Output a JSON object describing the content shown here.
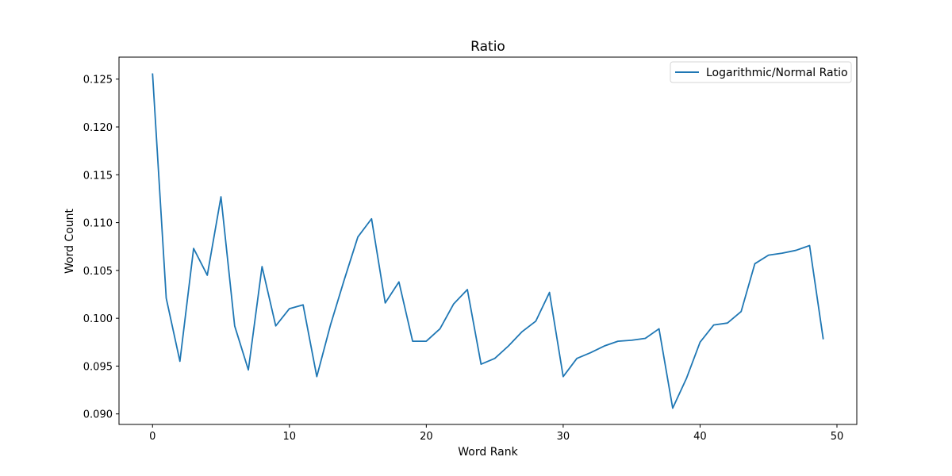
{
  "chart_data": {
    "type": "line",
    "title": "Ratio",
    "xlabel": "Word Rank",
    "ylabel": "Word Count",
    "xlim": [
      -2.45,
      51.45
    ],
    "ylim": [
      0.0889,
      0.1273
    ],
    "xticks": [
      0,
      10,
      20,
      30,
      40,
      50
    ],
    "xtick_labels": [
      "0",
      "10",
      "20",
      "30",
      "40",
      "50"
    ],
    "yticks": [
      0.09,
      0.095,
      0.1,
      0.105,
      0.11,
      0.115,
      0.12,
      0.125
    ],
    "ytick_labels": [
      "0.090",
      "0.095",
      "0.100",
      "0.105",
      "0.110",
      "0.115",
      "0.120",
      "0.125"
    ],
    "grid": false,
    "legend_position": "top-right",
    "series": [
      {
        "name": "Logarithmic/Normal Ratio",
        "color": "#1f77b4",
        "x": [
          0,
          1,
          2,
          3,
          4,
          5,
          6,
          7,
          8,
          9,
          10,
          11,
          12,
          13,
          14,
          15,
          16,
          17,
          18,
          19,
          20,
          21,
          22,
          23,
          24,
          25,
          26,
          27,
          28,
          29,
          30,
          31,
          32,
          33,
          34,
          35,
          36,
          37,
          38,
          39,
          40,
          41,
          42,
          43,
          44,
          45,
          46,
          47,
          48,
          49
        ],
        "values": [
          0.1256,
          0.1021,
          0.0955,
          0.1073,
          0.1045,
          0.1127,
          0.0992,
          0.0946,
          0.1054,
          0.0992,
          0.101,
          0.1014,
          0.0939,
          0.0993,
          0.104,
          0.1085,
          0.1104,
          0.1016,
          0.1038,
          0.0976,
          0.0976,
          0.0989,
          0.1015,
          0.103,
          0.0952,
          0.0958,
          0.0971,
          0.0986,
          0.0997,
          0.1027,
          0.0939,
          0.0958,
          0.0964,
          0.0971,
          0.0976,
          0.0977,
          0.0979,
          0.0989,
          0.0906,
          0.0937,
          0.0975,
          0.0993,
          0.0995,
          0.1007,
          0.1057,
          0.1066,
          0.1068,
          0.1071,
          0.1076,
          0.0978
        ]
      }
    ]
  }
}
